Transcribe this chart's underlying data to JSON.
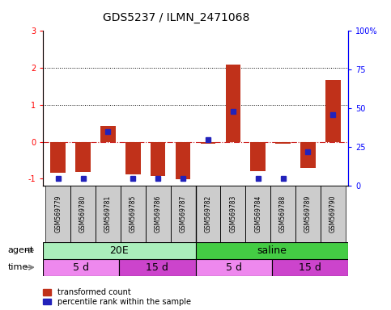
{
  "title": "GDS5237 / ILMN_2471068",
  "samples": [
    "GSM569779",
    "GSM569780",
    "GSM569781",
    "GSM569785",
    "GSM569786",
    "GSM569787",
    "GSM569782",
    "GSM569783",
    "GSM569784",
    "GSM569788",
    "GSM569789",
    "GSM569790"
  ],
  "red_values": [
    -0.85,
    -0.82,
    0.42,
    -0.88,
    -0.93,
    -1.02,
    -0.05,
    2.09,
    -0.8,
    -0.05,
    -0.72,
    1.68
  ],
  "blue_percentiles": [
    5,
    5,
    35,
    5,
    5,
    5,
    30,
    48,
    5,
    5,
    22,
    46
  ],
  "ylim_left": [
    -1.2,
    3.0
  ],
  "ylim_right": [
    0,
    100
  ],
  "yticks_left": [
    -1,
    0,
    1,
    2,
    3
  ],
  "yticks_right": [
    0,
    25,
    50,
    75,
    100
  ],
  "ytick_labels_right": [
    "0",
    "25",
    "50",
    "75",
    "100%"
  ],
  "hlines": [
    1,
    2
  ],
  "zero_line_y": 0,
  "bar_color_red": "#C0311A",
  "bar_color_blue": "#2222BB",
  "zero_line_color": "#CC2222",
  "hline_color": "black",
  "agent_20e_color": "#AAEEBB",
  "agent_saline_color": "#44CC44",
  "time_5d_color": "#EE88EE",
  "time_15d_color": "#CC44CC",
  "agent_20e_label": "20E",
  "agent_saline_label": "saline",
  "agent_row_label": "agent",
  "time_row_label": "time",
  "legend_red_label": "transformed count",
  "legend_blue_label": "percentile rank within the sample",
  "bar_width": 0.6,
  "agent_20e_cols": 6,
  "agent_saline_cols": 6,
  "time_5d_1_cols": 3,
  "time_15d_1_cols": 3,
  "time_5d_2_cols": 3,
  "time_15d_2_cols": 3
}
